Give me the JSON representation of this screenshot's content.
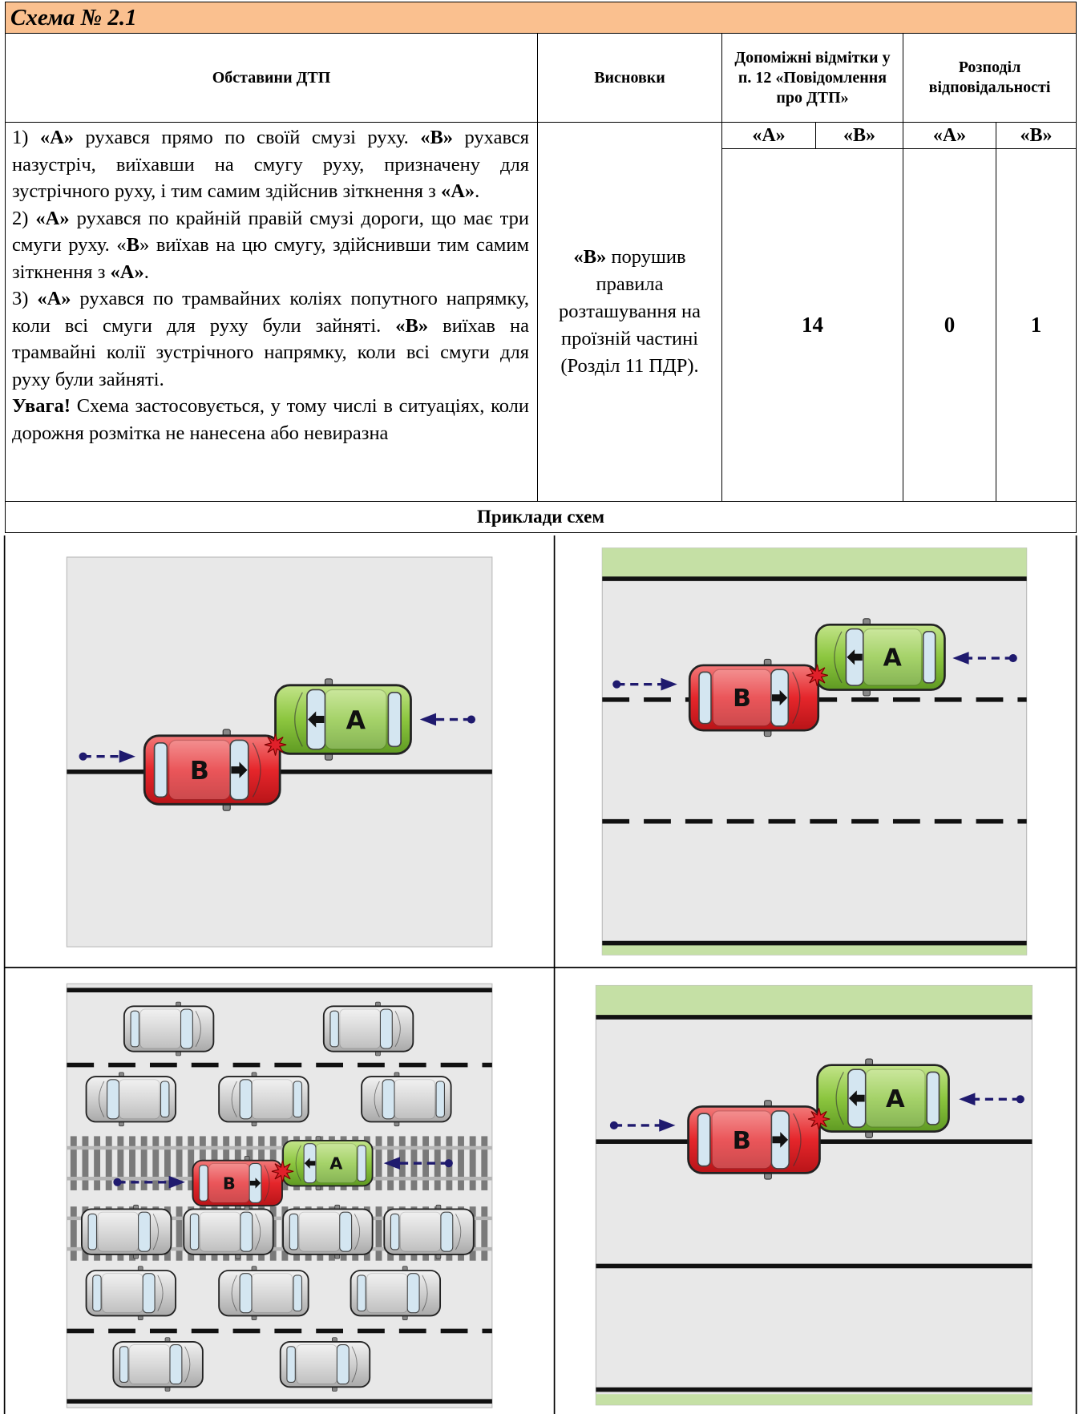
{
  "header": {
    "title": "Схема № 2.1"
  },
  "table": {
    "headers": [
      "Обставини ДТП",
      "Висновки",
      "Допоміжні відмітки у п. 12 «Повідомлення про ДТП»",
      "Розподіл відповідальності"
    ],
    "subheaders": [
      "«А»",
      "«В»",
      "«А»",
      "«В»"
    ],
    "circumstances": [
      {
        "runs": [
          {
            "text": "1) "
          },
          {
            "text": "«А»",
            "bold": true
          },
          {
            "text": " рухався прямо по своїй смузі руху. "
          },
          {
            "text": "«В»",
            "bold": true
          },
          {
            "text": " рухався назустріч, виїхавши на смугу руху, призначену для зустрічного руху, і тим самим здійснив зіткнення з "
          },
          {
            "text": "«А»",
            "bold": true
          },
          {
            "text": "."
          }
        ]
      },
      {
        "runs": [
          {
            "text": "2) "
          },
          {
            "text": "«А»",
            "bold": true
          },
          {
            "text": " рухався по крайній правій смузі дороги, що має три смуги руху. «"
          },
          {
            "text": "В",
            "bold": true
          },
          {
            "text": "» виїхав на цю смугу, здійснивши тим самим зіткнення з "
          },
          {
            "text": "«А»",
            "bold": true
          },
          {
            "text": "."
          }
        ]
      },
      {
        "runs": [
          {
            "text": "3) "
          },
          {
            "text": "«А»",
            "bold": true
          },
          {
            "text": " рухався по трамвайних коліях попутного напрямку, коли всі смуги для руху були зайняті. "
          },
          {
            "text": "«В»",
            "bold": true
          },
          {
            "text": " виїхав на трамвайні колії зустрічного напрямку, коли всі смуги для руху були зайняті."
          }
        ]
      },
      {
        "runs": [
          {
            "text": "Увага!",
            "bold": true
          },
          {
            "text": " Схема застосовується, у тому числі в ситуаціях, коли дорожня розмітка не нанесена або невиразна"
          }
        ]
      }
    ],
    "conclusion": {
      "runs": [
        {
          "text": "«В»",
          "bold": true
        },
        {
          "text": " порушив правила розташування на проїзній частині (Розділ 11 ПДР)."
        }
      ]
    },
    "mark": 14,
    "responsibility": [
      0,
      1
    ]
  },
  "examples": {
    "title": "Приклади схем",
    "diagrams": [
      {
        "car_a": "A",
        "car_b": "B"
      },
      {
        "car_a": "A",
        "car_b": "B"
      },
      {
        "car_a": "A",
        "car_b": "B"
      },
      {
        "car_a": "A",
        "car_b": "B"
      }
    ]
  }
}
